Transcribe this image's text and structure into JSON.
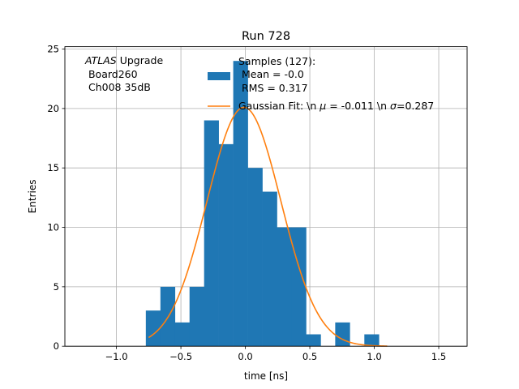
{
  "chart_data": {
    "type": "bar",
    "title": "Run 728",
    "xlabel": "time [ns]",
    "ylabel": "Entries",
    "xlim": [
      -1.4,
      1.72
    ],
    "ylim": [
      0,
      25.2
    ],
    "grid": true,
    "xticks": [
      -1.0,
      -0.5,
      0.0,
      0.5,
      1.0,
      1.5
    ],
    "xtick_labels": [
      "−1.0",
      "−0.5",
      "0.0",
      "0.5",
      "1.0",
      "1.5"
    ],
    "yticks": [
      0,
      5,
      10,
      15,
      20,
      25
    ],
    "ytick_labels": [
      "0",
      "5",
      "10",
      "15",
      "20",
      "25"
    ],
    "bin_edges": [
      -0.772,
      -0.659,
      -0.546,
      -0.433,
      -0.32,
      -0.207,
      -0.094,
      0.019,
      0.132,
      0.245,
      0.358,
      0.471,
      0.584,
      0.697,
      0.81,
      0.923,
      1.036,
      1.149
    ],
    "counts": [
      3,
      5,
      2,
      5,
      19,
      17,
      24,
      15,
      13,
      10,
      10,
      1,
      0,
      2,
      0,
      1,
      0
    ],
    "bar_color": "#1f77b4",
    "fit_color": "#ff7f0e",
    "fit": {
      "mu": -0.011,
      "sigma": 0.287,
      "amplitude": 20.1,
      "x_range": [
        -0.75,
        1.1
      ]
    },
    "annotation": {
      "atlas": "ATLAS",
      "upgrade": " Upgrade",
      "line2": " Board260",
      "line3": " Ch008 35dB"
    },
    "legend": {
      "position": "top-right",
      "hist_line1": "Samples (127):",
      "hist_line2": " Mean = -0.0",
      "hist_line3": " RMS = 0.317",
      "fit_prefix": "Gaussian Fit: \\n ",
      "fit_mu_symbol": "μ",
      "fit_mid": " = -0.011 \\n ",
      "fit_sigma_symbol": "σ",
      "fit_suffix": "=0.287"
    }
  }
}
